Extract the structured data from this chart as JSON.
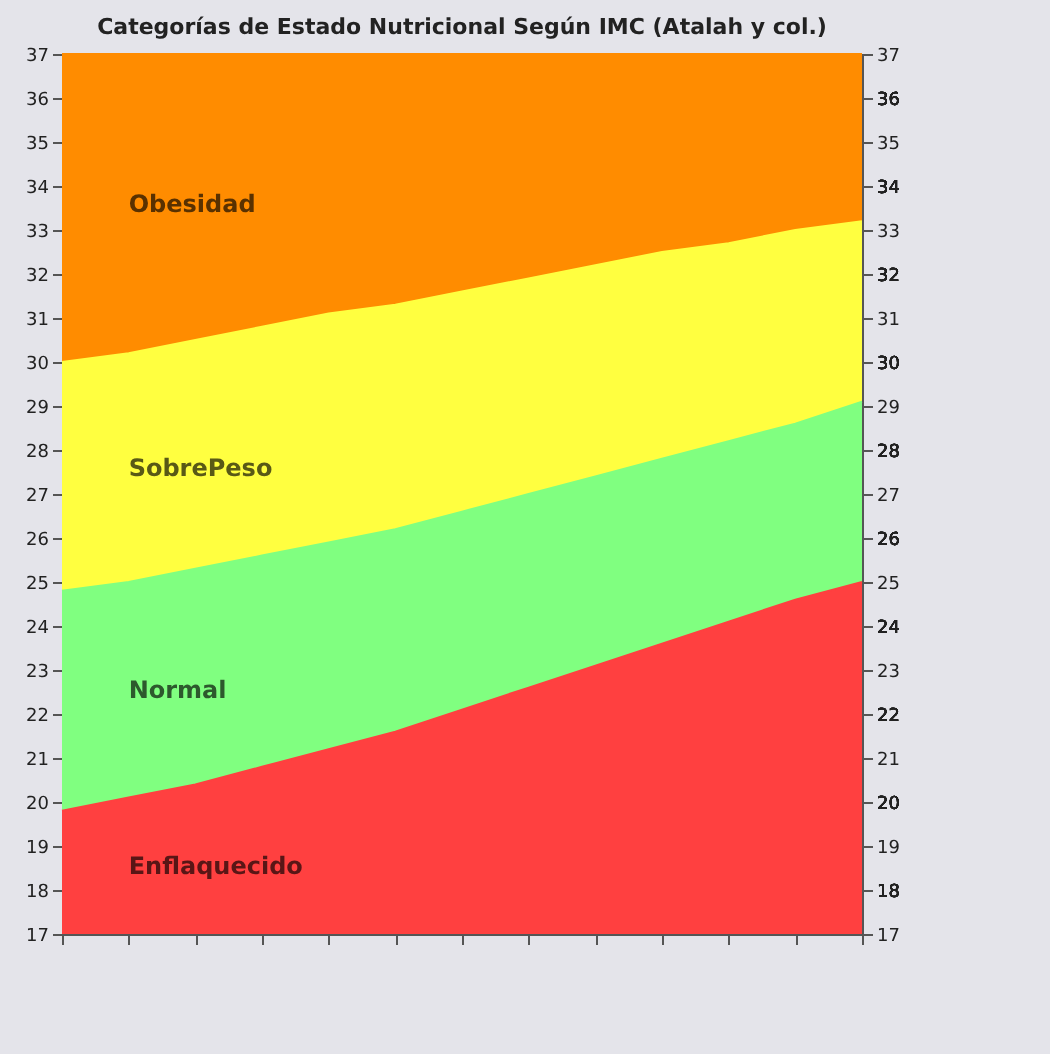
{
  "chart_data": {
    "type": "area",
    "title": "Categorías de Estado Nutricional Según IMC (Atalah y col.)",
    "categories": [
      null,
      null,
      null,
      null,
      null,
      null,
      null,
      null,
      null,
      null,
      null,
      null,
      null
    ],
    "series": [
      {
        "name": "Obesidad",
        "color": "#ff8c00",
        "values": [
          37,
          37,
          37,
          37,
          37,
          37,
          37,
          37,
          37,
          37,
          37,
          37,
          37
        ]
      },
      {
        "name": "SobrePeso",
        "color": "#ffff40",
        "values": [
          30.0,
          30.2,
          30.5,
          30.8,
          31.1,
          31.3,
          31.6,
          31.9,
          32.2,
          32.5,
          32.7,
          33.0,
          33.2
        ]
      },
      {
        "name": "Normal",
        "color": "#80ff80",
        "values": [
          24.8,
          25.0,
          25.3,
          25.6,
          25.9,
          26.2,
          26.6,
          27.0,
          27.4,
          27.8,
          28.2,
          28.6,
          29.1
        ]
      },
      {
        "name": "Enflaquecido",
        "color": "#ff4040",
        "values": [
          19.8,
          20.1,
          20.4,
          20.8,
          21.2,
          21.6,
          22.1,
          22.6,
          23.1,
          23.6,
          24.1,
          24.6,
          25.0
        ]
      }
    ],
    "ylim": [
      17,
      37
    ],
    "yticks": [
      17,
      18,
      19,
      20,
      21,
      22,
      23,
      24,
      25,
      26,
      27,
      28,
      29,
      30,
      31,
      32,
      33,
      34,
      35,
      36,
      37
    ],
    "y2lim": [
      17,
      37
    ],
    "y2ticks": [
      17,
      18,
      19,
      20,
      21,
      22,
      23,
      24,
      25,
      26,
      27,
      28,
      29,
      30,
      31,
      32,
      33,
      34,
      35,
      36,
      37
    ],
    "tick_labels": "y",
    "grid": false
  }
}
